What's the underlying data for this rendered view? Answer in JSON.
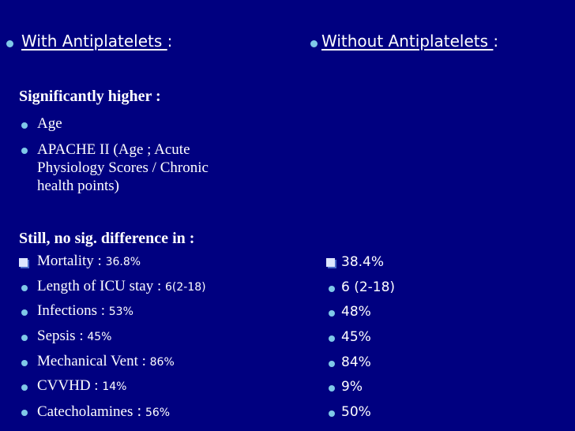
{
  "colors": {
    "background": "#000080",
    "text": "#ffffff",
    "bullet": "#7fc8e8",
    "checkbox": "#dde6ff"
  },
  "left": {
    "heading": "With Antiplatelets ",
    "heading_colon": ":",
    "higher_label": "Significantly higher :",
    "higher_items": [
      {
        "label": "Age"
      },
      {
        "label": "APACHE II  (Age ; Acute Physiology Scores / Chronic health points)"
      }
    ],
    "nosig_label": "Still, no sig. difference  in :",
    "rows": [
      {
        "label": "Mortality : ",
        "value": "36.8%",
        "bullet": "checkbox-icon"
      },
      {
        "label": "Length of ICU stay : ",
        "value": "6(2-18)",
        "bullet": "dot-icon"
      },
      {
        "label": "Infections : ",
        "value": "53%",
        "bullet": "dot-icon"
      },
      {
        "label": "Sepsis : ",
        "value": "45%",
        "bullet": "dot-icon"
      },
      {
        "label": "Mechanical Vent : ",
        "value": "86%",
        "bullet": "dot-icon"
      },
      {
        "label": "CVVHD : ",
        "value": "14%",
        "bullet": "dot-icon"
      },
      {
        "label": "Catecholamines ",
        "colon": ":",
        "value": " 56%",
        "bullet": "dot-icon"
      }
    ]
  },
  "right": {
    "heading": " Without Antiplatelets ",
    "heading_colon": ":",
    "values": [
      {
        "value": "38.4%",
        "bullet": "checkbox-icon"
      },
      {
        "value": "6 (2-18)",
        "bullet": "dot-icon"
      },
      {
        "value": "48%",
        "bullet": "dot-icon"
      },
      {
        "value": "45%",
        "bullet": "dot-icon"
      },
      {
        "value": "84%",
        "bullet": "dot-icon"
      },
      {
        "value": "9%",
        "bullet": "dot-icon"
      },
      {
        "value": "50%",
        "bullet": "dot-icon"
      }
    ]
  }
}
